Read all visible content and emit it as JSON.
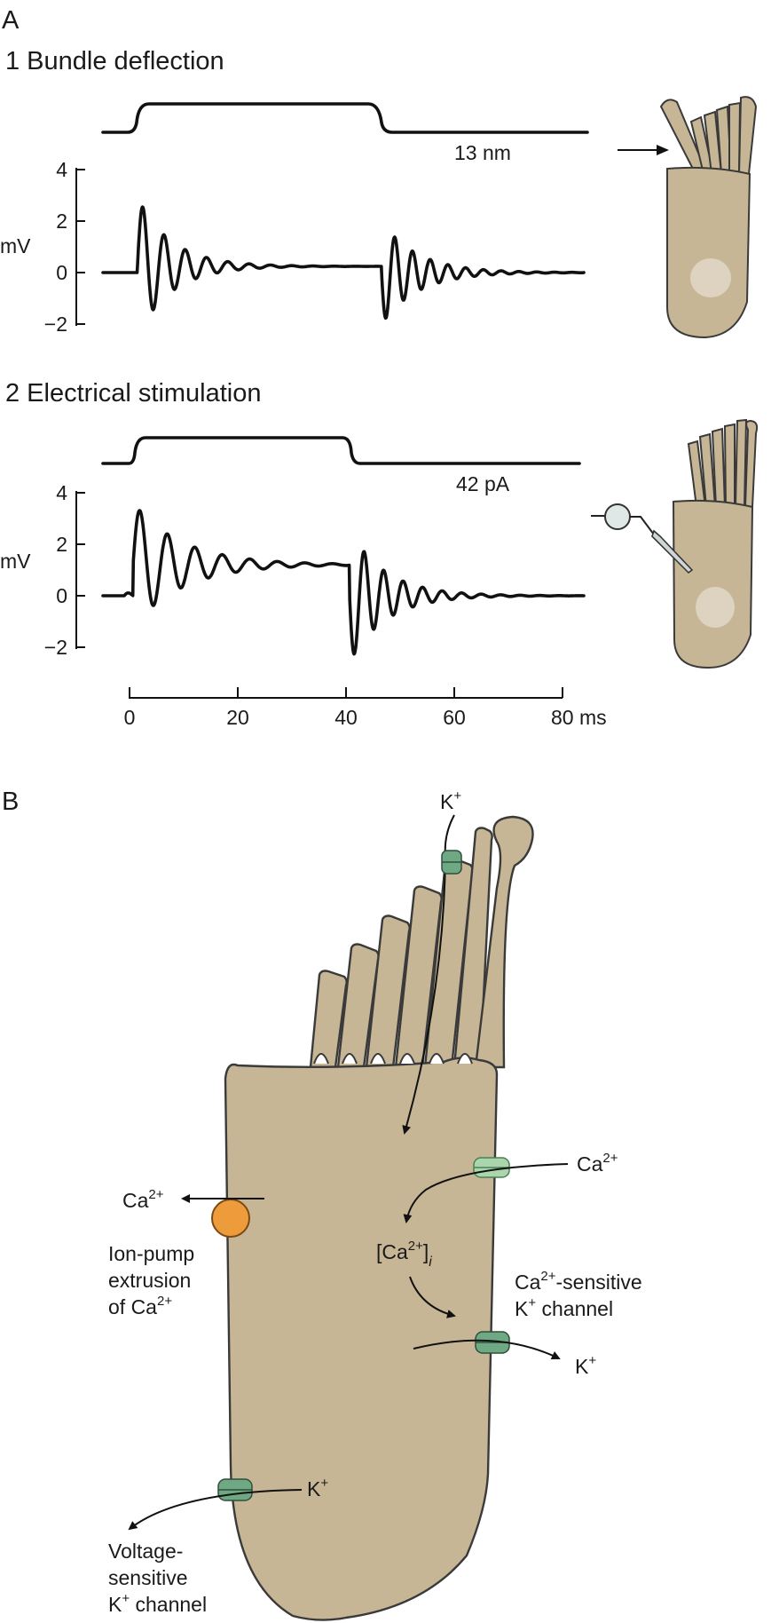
{
  "panel_a": {
    "label": "A",
    "sub1_title": "1  Bundle deflection",
    "sub1_stimulus": "13 nm",
    "sub2_title": "2  Electrical stimulation",
    "sub2_stimulus": "42 pA",
    "y_unit": "mV",
    "y_ticks": [
      "4",
      "2",
      "0",
      "−2"
    ],
    "x_ticks": [
      "0",
      "20",
      "40",
      "60",
      "80 ms"
    ]
  },
  "panel_b": {
    "label": "B",
    "k_top": "K",
    "ca_right": "Ca",
    "ca_left": "Ca",
    "ca_internal": "[Ca",
    "pump_line1": "Ion-pump",
    "pump_line2": "extrusion",
    "pump_line3": "of Ca",
    "ca_k_line1": "-sensitive",
    "ca_k_line1_prefix": "Ca",
    "ca_k_line2_prefix": "K",
    "ca_k_line2": " channel",
    "k_right": "K",
    "k_lower": "K",
    "volt_line1": "Voltage-",
    "volt_line2": "sensitive",
    "volt_line3_prefix": "K",
    "volt_line3": " channel",
    "sup_2plus": "2+",
    "sup_plus": "+",
    "sub_i": "i"
  },
  "colors": {
    "cell_fill": "#c7b695",
    "nucleus_fill": "#ddd3c0",
    "k_channel": "#6fa983",
    "ca_channel": "#a9d6ab",
    "pump": "#ee9b3c",
    "electrode_bulb": "#dfe8e6"
  },
  "icons": [
    "hair-cell-icon",
    "stimulus-arrow-icon",
    "electrode-icon",
    "ion-pump-icon",
    "k-channel-icon",
    "ca-channel-icon"
  ]
}
